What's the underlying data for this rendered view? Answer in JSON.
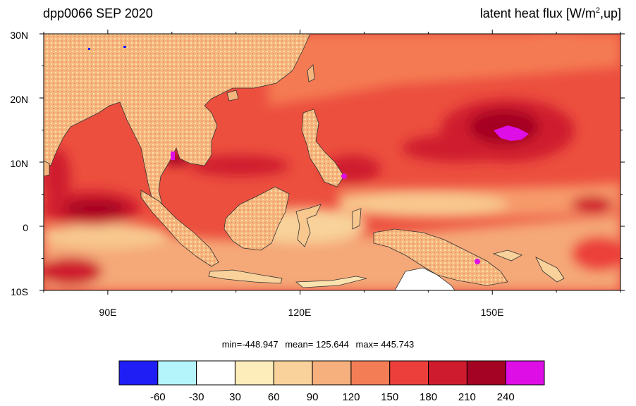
{
  "header": {
    "title_left": "dpp0066 SEP 2020",
    "title_right_pre": "latent heat flux [W/m",
    "title_right_sup": "2",
    "title_right_post": ",up]"
  },
  "map": {
    "lat_labels": [
      "30N",
      "20N",
      "10N",
      "0",
      "10S"
    ],
    "lon_labels": [
      "90E",
      "120E",
      "150E"
    ],
    "lat_range": [
      -10,
      30
    ],
    "lon_range": [
      80,
      170
    ],
    "colors": {
      "ocean_base": "#e7553e",
      "land_base": "#f7c48c",
      "coastline": "#333333"
    }
  },
  "stats": {
    "min": "min=-448.947",
    "mean": "mean= 125.644",
    "max": "max= 445.743"
  },
  "colorbar": {
    "colors": [
      "#1f1ff5",
      "#b3f5fa",
      "#ffffff",
      "#fcedbb",
      "#f8d29a",
      "#f5b07d",
      "#f37d55",
      "#ec3f3b",
      "#cf1b2e",
      "#a50323",
      "#de0ee6"
    ],
    "labels": [
      "-60",
      "-30",
      "30",
      "60",
      "90",
      "120",
      "150",
      "180",
      "210",
      "240"
    ]
  }
}
